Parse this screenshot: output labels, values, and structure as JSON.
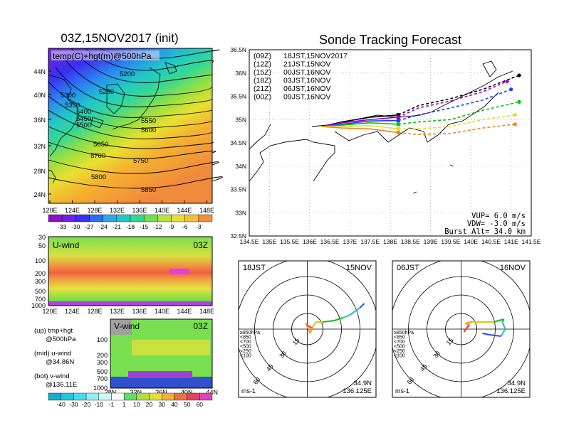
{
  "left_map": {
    "title": "03Z,15NOV2017 (init)",
    "label": "temp(C)+hgt(m)@500hPa",
    "lat_ticks": [
      "44N",
      "40N",
      "36N",
      "32N",
      "28N",
      "24N"
    ],
    "lon_ticks": [
      "120E",
      "124E",
      "128E",
      "132E",
      "136E",
      "140E",
      "144E",
      "148E"
    ],
    "contours": [
      "5200",
      "5250",
      "5300",
      "5350",
      "5400",
      "5450",
      "5500",
      "5550",
      "5600",
      "5650",
      "5700",
      "5750",
      "5800",
      "5850"
    ],
    "colorbar_ticks": [
      "-33",
      "-30",
      "-27",
      "-24",
      "-21",
      "-18",
      "-15",
      "-12",
      "-9",
      "-6",
      "-3"
    ]
  },
  "u_panel": {
    "label": "U-wind",
    "time": "03Z",
    "p_ticks": [
      "30",
      "50",
      "100",
      "200",
      "300",
      "500",
      "700",
      "1000"
    ],
    "lon_ticks": [
      "120E",
      "124E",
      "128E",
      "132E",
      "136E",
      "140E",
      "144E",
      "148E"
    ]
  },
  "v_panel": {
    "label": "V-wind",
    "time": "03Z",
    "p_ticks": [
      "100",
      "200",
      "300",
      "500",
      "700",
      "1000"
    ],
    "lat_ticks": [
      "28N",
      "32N",
      "36N",
      "40N",
      "44N"
    ]
  },
  "left_notes": [
    "(up) tmp+hgt",
    "@500hPa",
    "(mid) u-wind",
    "@34.86N",
    "(bot) v-wind",
    "@136.11E"
  ],
  "wind_colorbar_ticks": [
    "-40",
    "-30",
    "-20",
    "-10",
    "-1",
    "1",
    "10",
    "20",
    "30",
    "40",
    "50",
    "60"
  ],
  "track": {
    "title": "Sonde Tracking Forecast",
    "lat_ticks": [
      "36.5N",
      "36N",
      "35.5N",
      "35N",
      "34.5N",
      "34N",
      "33.5N",
      "33N",
      "32.5N"
    ],
    "lon_ticks": [
      "134.5E",
      "135E",
      "135.5E",
      "136E",
      "136.5E",
      "137E",
      "137.5E",
      "138E",
      "138.5E",
      "139E",
      "139.5E",
      "140E",
      "140.5E",
      "141E",
      "141.5E"
    ],
    "legend": [
      {
        "a": "(09Z)",
        "b": "18JST,15NOV2017",
        "color": "#000000"
      },
      {
        "a": "(12Z)",
        "b": "21JST,15NOV",
        "color": "#a000c8"
      },
      {
        "a": "(15Z)",
        "b": "00JST,16NOV",
        "color": "#1e3cff"
      },
      {
        "a": "(18Z)",
        "b": "03JST,16NOV",
        "color": "#00c800"
      },
      {
        "a": "(21Z)",
        "b": "06JST,16NOV",
        "color": "#e6dc32"
      },
      {
        "a": "(00Z)",
        "b": "09JST,16NOV",
        "color": "#f08228"
      }
    ],
    "params": [
      "VUP=  6.0 m/s",
      "VDW= -3.0 m/s",
      "Burst Alt= 34.0 km"
    ]
  },
  "hodo1": {
    "time": "18JST",
    "date": "15NOV",
    "rings": [
      "15",
      "30",
      "45",
      "60"
    ],
    "units": "ms-1",
    "lat": "34.9N",
    "lon": "136.125E"
  },
  "hodo2": {
    "time": "06JST",
    "date": "16NOV",
    "rings": [
      "15",
      "30",
      "45",
      "60"
    ],
    "units": "ms-1",
    "lat": "34.9N",
    "lon": "136.125E"
  },
  "hodo_legend": [
    "≥850hPa",
    "<850",
    "<700",
    "<500",
    "<250",
    "<100"
  ],
  "hodo_legend_colors": [
    "#ff2020",
    "#ff9020",
    "#e6c800",
    "#10c010",
    "#20c0c0",
    "#2050ff"
  ],
  "chart_data": [
    {
      "type": "line",
      "title": "Sonde Tracking Forecast",
      "xlim": [
        134.5,
        141.5
      ],
      "ylim": [
        32.5,
        36.5
      ],
      "series": [
        {
          "name": "18JST,15NOV2017",
          "points": [
            [
              136.3,
              34.85
            ],
            [
              136.8,
              34.95
            ],
            [
              137.5,
              35.05
            ],
            [
              138.2,
              35.1
            ],
            [
              138.7,
              35.3
            ],
            [
              139.5,
              35.45
            ],
            [
              140.3,
              35.65
            ],
            [
              141.2,
              35.95
            ]
          ]
        },
        {
          "name": "21JST,15NOV",
          "points": [
            [
              136.3,
              34.85
            ],
            [
              136.8,
              34.93
            ],
            [
              137.5,
              35.0
            ],
            [
              138.2,
              35.05
            ],
            [
              138.7,
              35.25
            ],
            [
              139.5,
              35.4
            ],
            [
              140.3,
              35.6
            ],
            [
              140.9,
              35.82
            ]
          ]
        },
        {
          "name": "00JST,16NOV",
          "points": [
            [
              136.3,
              34.85
            ],
            [
              136.8,
              34.9
            ],
            [
              137.5,
              34.97
            ],
            [
              138.2,
              34.98
            ],
            [
              138.7,
              35.1
            ],
            [
              139.5,
              35.25
            ],
            [
              140.3,
              35.42
            ],
            [
              141.0,
              35.65
            ]
          ]
        },
        {
          "name": "03JST,16NOV",
          "points": [
            [
              136.3,
              34.85
            ],
            [
              136.8,
              34.88
            ],
            [
              137.5,
              34.93
            ],
            [
              138.2,
              34.9
            ],
            [
              138.7,
              34.95
            ],
            [
              139.5,
              35.0
            ],
            [
              140.3,
              35.2
            ],
            [
              141.2,
              35.38
            ]
          ]
        },
        {
          "name": "06JST,16NOV",
          "points": [
            [
              136.3,
              34.85
            ],
            [
              136.8,
              34.85
            ],
            [
              137.5,
              34.87
            ],
            [
              138.2,
              34.8
            ],
            [
              138.7,
              34.8
            ],
            [
              139.5,
              34.85
            ],
            [
              140.3,
              35.0
            ],
            [
              141.1,
              35.1
            ]
          ]
        },
        {
          "name": "09JST,16NOV",
          "points": [
            [
              136.3,
              34.85
            ],
            [
              136.8,
              34.82
            ],
            [
              137.5,
              34.8
            ],
            [
              138.2,
              34.72
            ],
            [
              138.7,
              34.68
            ],
            [
              139.5,
              34.7
            ],
            [
              140.3,
              34.82
            ],
            [
              141.1,
              34.9
            ]
          ]
        }
      ]
    }
  ]
}
